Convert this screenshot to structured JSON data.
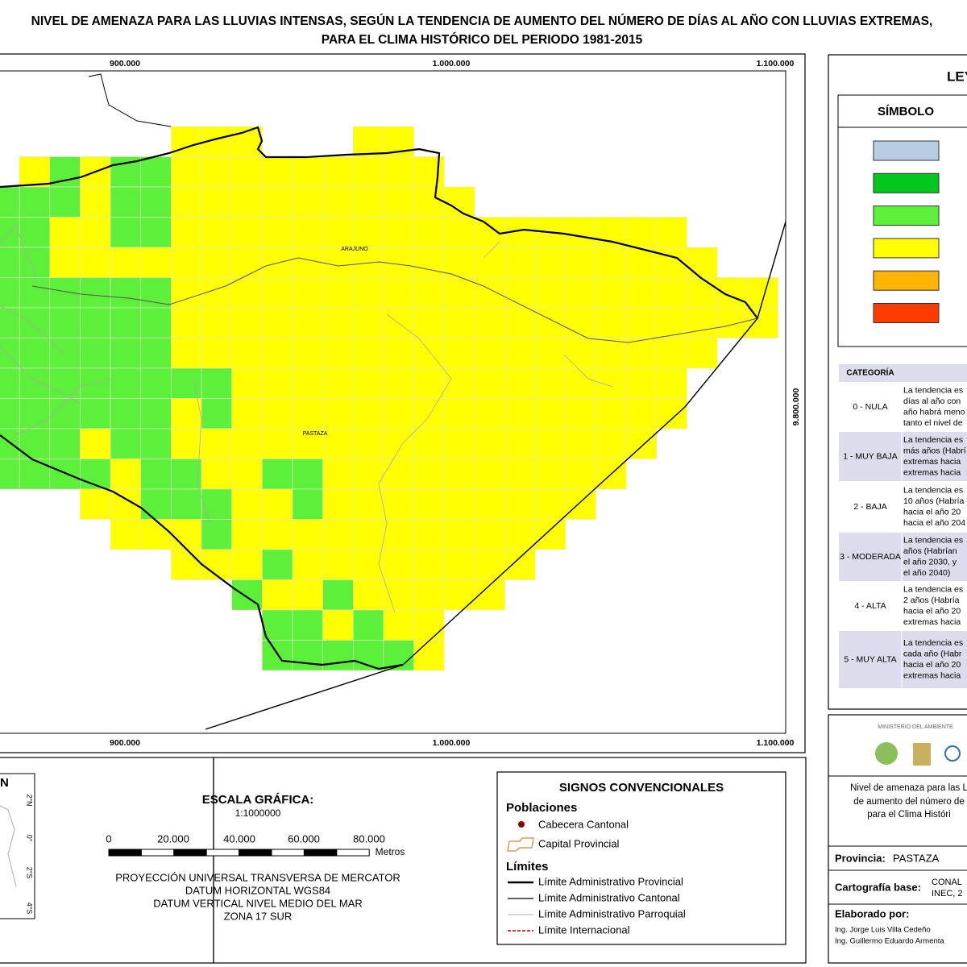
{
  "header": {
    "title": [
      "NIVEL DE AMENAZA PARA LAS LLUVIAS INTENSAS, SEGÚN LA TENDENCIA DE AUMENTO DEL NÚMERO DE DÍAS AL AÑO CON LLUVIAS EXTREMAS,",
      "PARA EL CLIMA HISTÓRICO DEL PERIODO 1981-2015"
    ]
  },
  "map": {
    "coords_top": [
      "900.000",
      "1.000.000",
      "1.100.000"
    ],
    "coords_bottom": [
      "900.000",
      "1.000.000",
      "1.100.000"
    ],
    "coord_right": "9.800.000",
    "places": [
      "ARAJUNO",
      "PASTAZA"
    ],
    "cells": [
      [
        null,
        null,
        null,
        null,
        null,
        null,
        3,
        3,
        3,
        null,
        null,
        null,
        3,
        3,
        null,
        null,
        null,
        null,
        null,
        null,
        null,
        null,
        null,
        null,
        null,
        null
      ],
      [
        null,
        3,
        2,
        3,
        2,
        2,
        3,
        3,
        3,
        3,
        3,
        3,
        3,
        3,
        3,
        null,
        null,
        null,
        null,
        null,
        null,
        null,
        null,
        null,
        null,
        null
      ],
      [
        2,
        2,
        2,
        3,
        2,
        2,
        3,
        3,
        3,
        3,
        3,
        3,
        3,
        3,
        3,
        3,
        null,
        null,
        null,
        null,
        null,
        null,
        null,
        null,
        null,
        null
      ],
      [
        2,
        2,
        3,
        3,
        2,
        2,
        3,
        3,
        3,
        3,
        3,
        3,
        3,
        3,
        3,
        3,
        3,
        3,
        3,
        3,
        3,
        3,
        3,
        null,
        null,
        null
      ],
      [
        2,
        2,
        3,
        3,
        3,
        3,
        3,
        3,
        3,
        3,
        3,
        3,
        3,
        3,
        3,
        3,
        3,
        3,
        3,
        3,
        3,
        3,
        3,
        3,
        null,
        null
      ],
      [
        2,
        2,
        2,
        2,
        2,
        2,
        3,
        3,
        3,
        3,
        3,
        3,
        3,
        3,
        3,
        3,
        3,
        3,
        3,
        3,
        3,
        3,
        3,
        3,
        3,
        3
      ],
      [
        2,
        2,
        2,
        2,
        2,
        2,
        3,
        3,
        3,
        3,
        3,
        3,
        3,
        3,
        3,
        3,
        3,
        3,
        3,
        3,
        3,
        3,
        3,
        3,
        3,
        3
      ],
      [
        2,
        2,
        2,
        2,
        2,
        2,
        3,
        3,
        3,
        3,
        3,
        3,
        3,
        3,
        3,
        3,
        3,
        3,
        3,
        3,
        3,
        3,
        3,
        3,
        null,
        null
      ],
      [
        2,
        2,
        2,
        2,
        2,
        2,
        2,
        2,
        3,
        3,
        3,
        3,
        3,
        3,
        3,
        3,
        3,
        3,
        3,
        3,
        3,
        3,
        3,
        null,
        null,
        null
      ],
      [
        2,
        2,
        2,
        2,
        2,
        2,
        3,
        2,
        3,
        3,
        3,
        3,
        3,
        3,
        3,
        3,
        3,
        3,
        3,
        3,
        3,
        3,
        3,
        null,
        null,
        null
      ],
      [
        2,
        2,
        2,
        3,
        2,
        2,
        3,
        3,
        3,
        3,
        3,
        3,
        3,
        3,
        3,
        3,
        3,
        3,
        3,
        3,
        3,
        3,
        null,
        null,
        null,
        null
      ],
      [
        2,
        2,
        2,
        2,
        3,
        2,
        2,
        3,
        3,
        2,
        2,
        3,
        3,
        3,
        3,
        3,
        3,
        3,
        3,
        3,
        3,
        null,
        null,
        null,
        null,
        null
      ],
      [
        null,
        null,
        null,
        3,
        3,
        2,
        2,
        2,
        3,
        3,
        2,
        3,
        3,
        3,
        3,
        3,
        3,
        3,
        3,
        3,
        null,
        null,
        null,
        null,
        null,
        null
      ],
      [
        null,
        null,
        null,
        null,
        3,
        3,
        3,
        2,
        3,
        3,
        3,
        3,
        3,
        3,
        3,
        3,
        3,
        3,
        3,
        null,
        null,
        null,
        null,
        null,
        null,
        null
      ],
      [
        null,
        null,
        null,
        null,
        null,
        null,
        3,
        3,
        3,
        2,
        3,
        3,
        3,
        3,
        3,
        3,
        3,
        3,
        null,
        null,
        null,
        null,
        null,
        null,
        null,
        null
      ],
      [
        null,
        null,
        null,
        null,
        null,
        null,
        null,
        null,
        2,
        3,
        3,
        2,
        3,
        3,
        3,
        3,
        3,
        null,
        null,
        null,
        null,
        null,
        null,
        null,
        null,
        null
      ],
      [
        null,
        null,
        null,
        null,
        null,
        null,
        null,
        null,
        null,
        2,
        2,
        3,
        2,
        3,
        3,
        null,
        null,
        null,
        null,
        null,
        null,
        null,
        null,
        null,
        null,
        null
      ],
      [
        null,
        null,
        null,
        null,
        null,
        null,
        null,
        null,
        null,
        2,
        2,
        2,
        2,
        2,
        3,
        null,
        null,
        null,
        null,
        null,
        null,
        null,
        null,
        null,
        null,
        null
      ]
    ]
  },
  "legend": {
    "title": "LEYENDA",
    "symbol_header": "SÍMBOLO",
    "colors": [
      "#b8cce4",
      "#00c81e",
      "#5cf03a",
      "#ffff00",
      "#ffb400",
      "#ff3c00"
    ],
    "category_header": "CATEGORÍA",
    "categories": [
      {
        "name": "0 - NULA",
        "text": [
          "La tendencia es",
          "días al año con",
          "año habrá meno",
          "tanto el nivel de"
        ]
      },
      {
        "name": "1 - MUY BAJA",
        "text": [
          "La tendencia es",
          "más años (Habrí",
          "extremas hacia",
          "extremas hacia"
        ]
      },
      {
        "name": "2 - BAJA",
        "text": [
          "La tendencia es",
          "10 años (Habría",
          "hacia el año 20",
          "hacia el año 204"
        ]
      },
      {
        "name": "3 - MODERADA",
        "text": [
          "La tendencia es",
          "años (Habrían",
          "el año 2030, y",
          "el año 2040)"
        ]
      },
      {
        "name": "4 - ALTA",
        "text": [
          "La tendencia es",
          "2 años (Habría",
          "hacia el año 20",
          "extremas hacia"
        ]
      },
      {
        "name": "5 - MUY ALTA",
        "text": [
          "La tendencia es",
          "cada año (Habr",
          "hacia el año 20",
          "extremas hacia"
        ]
      }
    ]
  },
  "location": {
    "north": "N",
    "lat_labels": [
      "2°N",
      "0°",
      "2°S",
      "4°S"
    ]
  },
  "scale": {
    "title": "ESCALA GRÁFICA:",
    "ratio": "1:1000000",
    "ticks": [
      "0",
      "20.000",
      "40.000",
      "60.000",
      "80.000"
    ],
    "unit": "Metros",
    "projection": [
      "PROYECCIÓN UNIVERSAL TRANSVERSA DE MERCATOR",
      "DATUM HORIZONTAL WGS84",
      "DATUM VERTICAL NIVEL MEDIO DEL MAR",
      "ZONA 17 SUR"
    ]
  },
  "signs": {
    "title": "SIGNOS CONVENCIONALES",
    "populations": "Poblaciones",
    "population_items": [
      "Cabecera Cantonal",
      "Capital Provincial"
    ],
    "limits": "Límites",
    "limit_items": [
      "Límite Administrativo Provincial",
      "Límite Administrativo Cantonal",
      "Límite Administrativo Parroquial",
      "Límite Internacional"
    ]
  },
  "info": {
    "ministry": "MINISTERIO DEL AMBIENTE",
    "description": [
      "Nivel de amenaza para las L",
      "de aumento del número de",
      "para el Clima Históri"
    ],
    "province_label": "Provincia:",
    "province": "PASTAZA",
    "base_label": "Cartografía base:",
    "base": [
      "CONAL",
      "INEC, 2"
    ],
    "author_label": "Elaborado por:",
    "authors": [
      "Ing. Jorge Luis Villa Cedeño",
      "Ing. Guillermo Eduardo Armenta"
    ]
  }
}
